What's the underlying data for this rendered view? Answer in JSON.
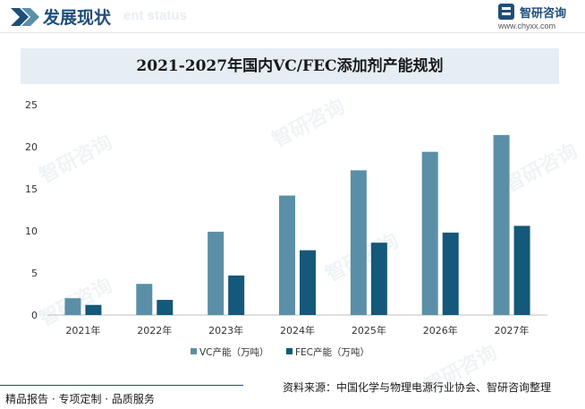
{
  "header": {
    "section_title": "发展现状",
    "section_subtitle": "ent status",
    "brand_name": "智研咨询",
    "brand_url": "www.chyxx.com"
  },
  "footer": {
    "left_text": "精品报告 · 专项定制 · 品质服务",
    "source_text": "资料来源：中国化学与物理电源行业协会、智研咨询整理"
  },
  "watermarks": [
    "智研咨询",
    "智研咨询",
    "智研咨询",
    "智研咨询",
    "智研咨询",
    "智研咨询"
  ],
  "colors": {
    "vc": "#5b8fa8",
    "fec": "#14587a",
    "title_bg": "#e6eef4"
  },
  "chart_data": {
    "type": "bar",
    "title": "2021-2027年国内VC/FEC添加剂产能规划",
    "categories": [
      "2021年",
      "2022年",
      "2023年",
      "2024年",
      "2025年",
      "2026年",
      "2027年"
    ],
    "series": [
      {
        "name": "VC产能（万吨）",
        "values": [
          2.0,
          3.7,
          9.9,
          14.2,
          17.2,
          19.4,
          21.4
        ]
      },
      {
        "name": "FEC产能（万吨）",
        "values": [
          1.2,
          1.8,
          4.7,
          7.7,
          8.6,
          9.8,
          10.6
        ]
      }
    ],
    "ylim": [
      0,
      25
    ],
    "yticks": [
      0,
      5,
      10,
      15,
      20,
      25
    ],
    "xlabel": "",
    "ylabel": "",
    "legend": "bottom-center"
  }
}
